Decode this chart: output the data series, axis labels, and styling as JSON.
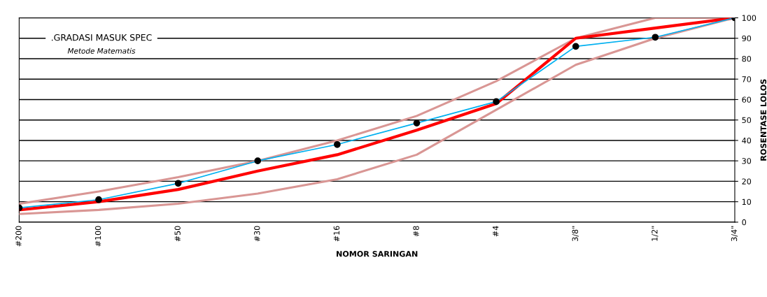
{
  "chart_data": {
    "type": "line",
    "xlabel": "NOMOR SARINGAN",
    "ylabel": "ROSENTASE LOLOS",
    "annotations": [
      ".GRADASI MASUK SPEC",
      "Metode Matematis"
    ],
    "categories": [
      "#200",
      "#100",
      "#50",
      "#30",
      "#16",
      "#8",
      "#4",
      "3/8\"",
      "1/2\"",
      "3/4\""
    ],
    "ylim": [
      0,
      100
    ],
    "yticks": [
      0,
      10,
      20,
      30,
      40,
      50,
      60,
      70,
      80,
      90,
      100
    ],
    "grid": "y",
    "series": [
      {
        "color": "#d99694",
        "values": [
          9,
          15,
          22,
          30,
          40,
          52,
          69,
          90,
          100,
          100
        ],
        "marker": "none"
      },
      {
        "color": "#d99694",
        "values": [
          4,
          6,
          9,
          14,
          21,
          33,
          55,
          77,
          90,
          100
        ],
        "marker": "none"
      },
      {
        "color": "#ff0000",
        "values": [
          6,
          10,
          16,
          25,
          33,
          45,
          58,
          90,
          95,
          100
        ],
        "marker": "none"
      },
      {
        "color": "#00b0f0",
        "values": [
          7,
          11,
          19,
          30,
          38,
          48.5,
          59,
          86,
          90.5,
          100
        ],
        "marker": "circle"
      }
    ]
  }
}
